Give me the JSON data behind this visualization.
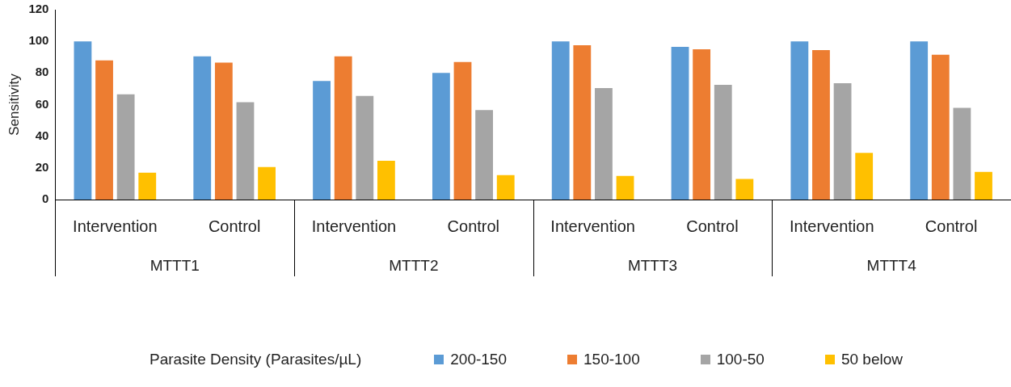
{
  "chart_data": {
    "type": "bar",
    "ylabel": "Sensitivity",
    "legend_title": "Parasite Density (Parasites/µL)",
    "categories": [
      "Intervention",
      "Control",
      "Intervention",
      "Control",
      "Intervention",
      "Control",
      "Intervention",
      "Control"
    ],
    "annotations": [
      "MTTT1",
      "MTTT2",
      "MTTT3",
      "MTTT4"
    ],
    "series": [
      {
        "name": "200-150",
        "color": "#5b9bd5",
        "values": [
          100,
          90.5,
          75,
          80,
          100,
          96.5,
          100,
          100
        ]
      },
      {
        "name": "150-100",
        "color": "#ed7d31",
        "values": [
          88,
          86.5,
          90.5,
          87,
          97.5,
          95,
          94.5,
          91.5
        ]
      },
      {
        "name": "100-50",
        "color": "#a5a5a5",
        "values": [
          66.5,
          61.5,
          65.5,
          56.5,
          70.5,
          72.5,
          73.5,
          58
        ]
      },
      {
        "name": "50 below",
        "color": "#ffc000",
        "values": [
          17,
          20.5,
          24.5,
          15.5,
          15,
          13,
          29.5,
          17.5
        ]
      }
    ],
    "ylim": [
      0,
      120
    ],
    "yticks": [
      0,
      20,
      40,
      60,
      80,
      100,
      120
    ],
    "grid": false,
    "legend": "bottom"
  }
}
